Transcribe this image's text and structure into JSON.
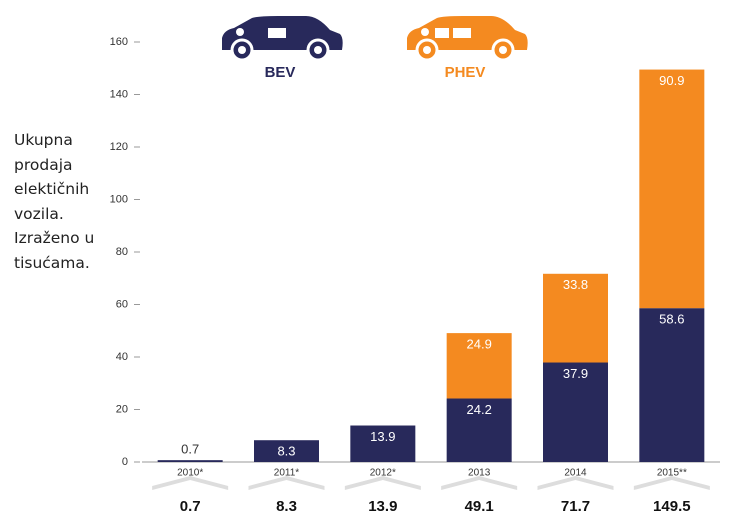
{
  "chart_data": {
    "type": "bar",
    "stacked": true,
    "y_axis_label": "Ukupna prodaja elektičnih vozila. Izraženo u tisućama.",
    "categories": [
      "2010*",
      "2011*",
      "2012*",
      "2013",
      "2014",
      "2015**"
    ],
    "series": [
      {
        "name": "BEV",
        "color": "#28295b",
        "values": [
          0.7,
          8.3,
          13.9,
          24.2,
          37.9,
          58.6
        ]
      },
      {
        "name": "PHEV",
        "color": "#f48a20",
        "values": [
          null,
          null,
          null,
          24.9,
          33.8,
          90.9
        ]
      }
    ],
    "totals": [
      0.7,
      8.3,
      13.9,
      49.1,
      71.7,
      149.5
    ],
    "ylim": [
      0,
      160
    ],
    "yticks": [
      0,
      20,
      40,
      60,
      80,
      100,
      120,
      140,
      160
    ],
    "grid": false
  }
}
